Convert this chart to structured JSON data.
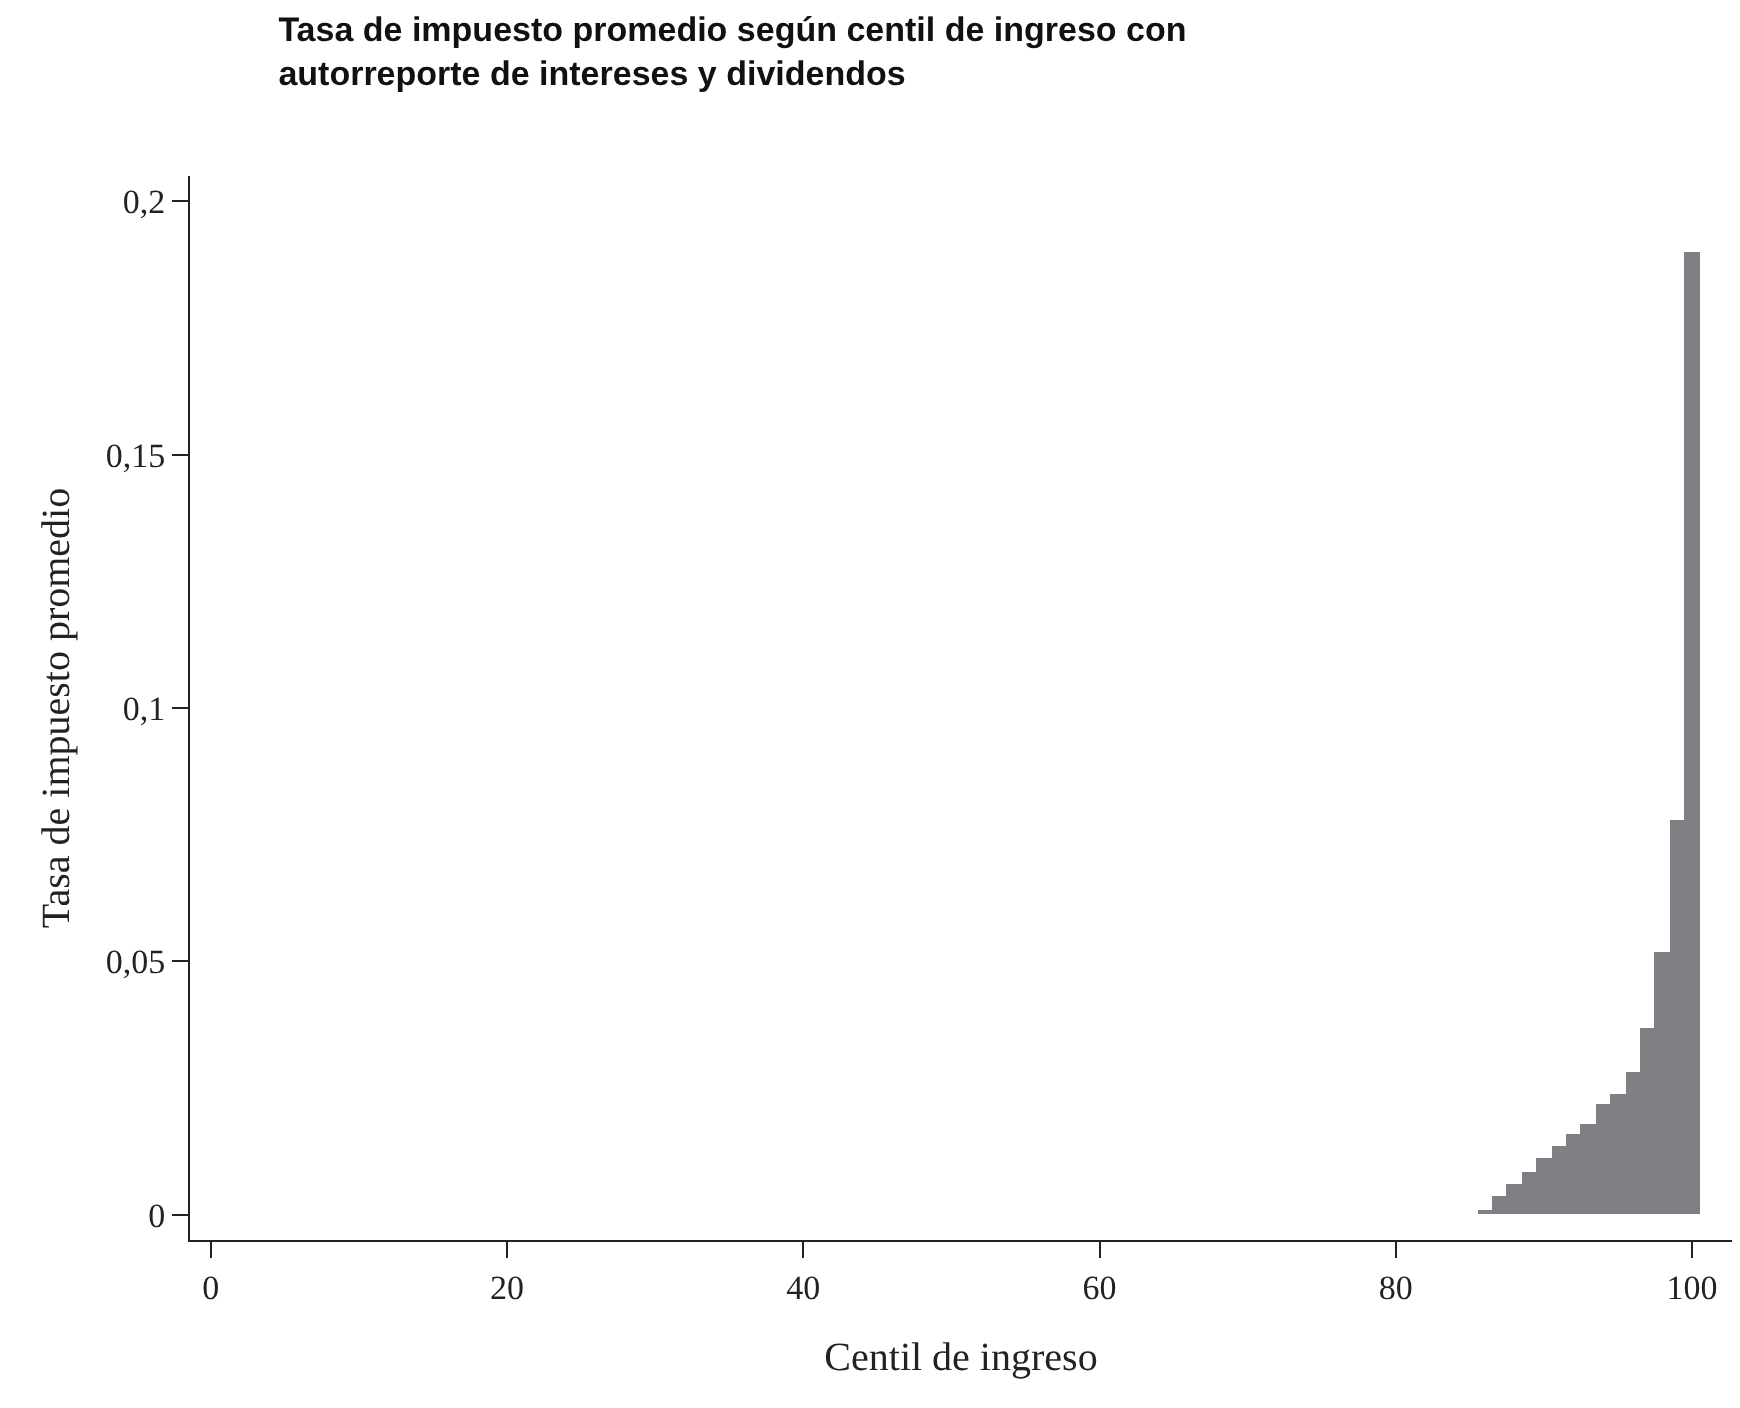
{
  "chart_data": {
    "type": "bar",
    "title": "Tasa de impuesto promedio según centil de ingreso con\nautorreporte de intereses y dividendos",
    "xlabel": "Centil de ingreso",
    "ylabel": "Tasa de impuesto promedio",
    "x": [
      86,
      87,
      88,
      89,
      90,
      91,
      92,
      93,
      94,
      95,
      96,
      97,
      98,
      99,
      100
    ],
    "values": [
      0.001,
      0.0035,
      0.006,
      0.0085,
      0.011,
      0.0135,
      0.016,
      0.018,
      0.022,
      0.024,
      0.028,
      0.037,
      0.052,
      0.078,
      0.19
    ],
    "color": "#7f8084",
    "xlim": [
      -1.4,
      102.7
    ],
    "xticks": [
      0,
      20,
      40,
      60,
      80,
      100
    ],
    "ylim": [
      -0.005,
      0.205
    ],
    "yticks": [
      {
        "value": 0,
        "label": "0"
      },
      {
        "value": 0.05,
        "label": "0,05"
      },
      {
        "value": 0.1,
        "label": "0,1"
      },
      {
        "value": 0.15,
        "label": "0,15"
      },
      {
        "value": 0.2,
        "label": "0,2"
      }
    ]
  }
}
